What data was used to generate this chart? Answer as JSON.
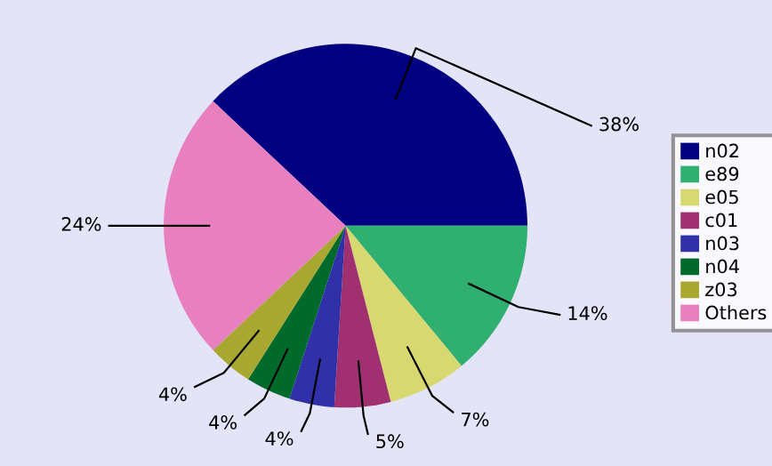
{
  "chart_data": {
    "type": "pie",
    "categories": [
      "n02",
      "e89",
      "e05",
      "c01",
      "n03",
      "n04",
      "z03",
      "Others"
    ],
    "values": [
      38,
      14,
      7,
      5,
      4,
      4,
      4,
      24
    ],
    "colors": [
      "#000080",
      "#30b070",
      "#d8d870",
      "#a03070",
      "#3030a8",
      "#006a2a",
      "#a8a830",
      "#e880c0"
    ],
    "value_labels": [
      "38%",
      "14%",
      "7%",
      "5%",
      "4%",
      "4%",
      "4%",
      "24%"
    ],
    "legend": "right"
  }
}
